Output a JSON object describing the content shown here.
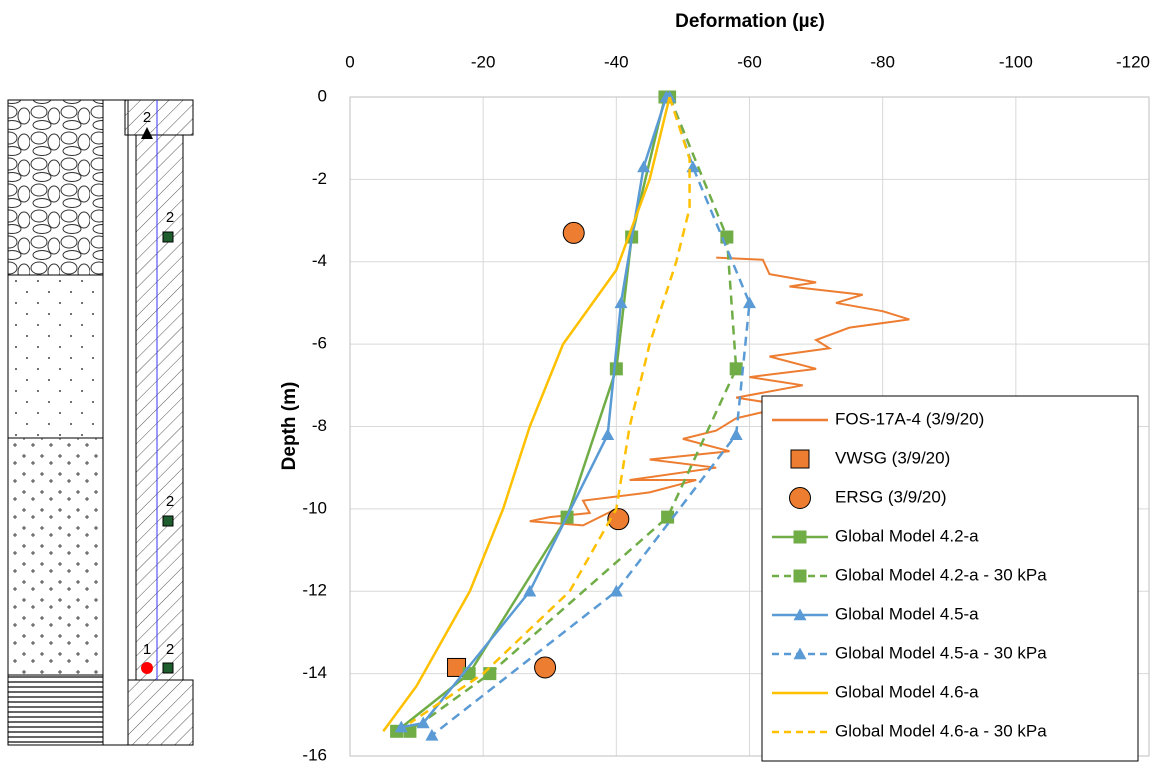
{
  "chart_data": {
    "type": "line",
    "title": "Deformation (µε)",
    "y_label": "Depth (m)",
    "xlim": [
      0,
      -120
    ],
    "xticks": [
      0,
      -20,
      -40,
      -60,
      -80,
      -100,
      -120
    ],
    "ylim": [
      0,
      -16
    ],
    "yticks": [
      0,
      -2,
      -4,
      -6,
      -8,
      -10,
      -12,
      -14,
      -16
    ],
    "grid": true,
    "legend": "lower-right",
    "series": [
      {
        "name": "FOS-17A-4 (3/9/20)",
        "color": "#ed7d31",
        "line": "solid",
        "marker": "none",
        "x": [
          -55,
          -62,
          -63,
          -70,
          -66,
          -77,
          -73,
          -80,
          -84,
          -75,
          -70,
          -72,
          -63,
          -70,
          -60,
          -68,
          -58,
          -66,
          -58,
          -55,
          -50,
          -57,
          -45,
          -55,
          -42,
          -52,
          -45,
          -35,
          -36,
          -30,
          -27,
          -35,
          -40
        ],
        "y": [
          -3.9,
          -3.95,
          -4.3,
          -4.5,
          -4.6,
          -4.8,
          -5.0,
          -5.2,
          -5.4,
          -5.6,
          -5.9,
          -6.1,
          -6.3,
          -6.6,
          -6.8,
          -7.0,
          -7.3,
          -7.5,
          -7.8,
          -8.1,
          -8.3,
          -8.6,
          -8.8,
          -9.0,
          -9.3,
          -9.3,
          -9.6,
          -9.8,
          -10.1,
          -10.2,
          -10.3,
          -10.4,
          -10.0
        ]
      },
      {
        "name": "VWSG (3/9/20)",
        "color": "#ed7d31",
        "line": "none",
        "marker": "square",
        "x": [
          -16
        ],
        "y": [
          -13.85
        ]
      },
      {
        "name": "ERSG (3/9/20)",
        "color": "#ed7d31",
        "line": "none",
        "marker": "circle",
        "x": [
          -33.6,
          -40.3,
          -29.3
        ],
        "y": [
          -3.3,
          -10.25,
          -13.85
        ]
      },
      {
        "name": "Global Model 4.2-a",
        "color": "#70ad47",
        "line": "solid",
        "marker": "square",
        "x": [
          -47.3,
          -42.3,
          -40,
          -32.6,
          -17.9,
          -7
        ],
        "y": [
          0,
          -3.4,
          -6.6,
          -10.2,
          -14,
          -15.4
        ]
      },
      {
        "name": "Global Model 4.2-a - 30 kPa",
        "color": "#70ad47",
        "line": "dashed",
        "marker": "square",
        "x": [
          -48,
          -56.6,
          -58,
          -47.7,
          -21,
          -9
        ],
        "y": [
          0,
          -3.4,
          -6.6,
          -10.2,
          -14,
          -15.4
        ]
      },
      {
        "name": "Global Model 4.5-a",
        "color": "#5b9bd5",
        "line": "solid",
        "marker": "triangle",
        "x": [
          -47.5,
          -44.1,
          -40.7,
          -38.7,
          -27,
          -11,
          -7.7
        ],
        "y": [
          0,
          -1.7,
          -5,
          -8.2,
          -12,
          -15.2,
          -15.3
        ]
      },
      {
        "name": "Global Model 4.5-a - 30 kPa",
        "color": "#5b9bd5",
        "line": "dashed",
        "marker": "triangle",
        "x": [
          -48,
          -51.5,
          -60,
          -58,
          -40,
          -12.3
        ],
        "y": [
          0,
          -1.7,
          -5,
          -8.2,
          -12,
          -15.5
        ]
      },
      {
        "name": "Global Model 4.6-a",
        "color": "#ffc000",
        "line": "solid",
        "marker": "none",
        "x": [
          -48,
          -45,
          -40,
          -32,
          -27,
          -23,
          -18,
          -10,
          -5
        ],
        "y": [
          0,
          -2,
          -4.2,
          -6,
          -8,
          -10,
          -12,
          -14.3,
          -15.4
        ]
      },
      {
        "name": "Global Model 4.6-a - 30 kPa",
        "color": "#ffc000",
        "line": "dashed",
        "marker": "none",
        "x": [
          -48,
          -51,
          -51,
          -49,
          -45,
          -42,
          -40,
          -33,
          -20,
          -9
        ],
        "y": [
          0,
          -1.5,
          -2.7,
          -4,
          -6,
          -8,
          -10,
          -12,
          -14,
          -15.2
        ]
      }
    ]
  },
  "borehole": {
    "labels": [
      "2",
      "2",
      "2",
      "1",
      "2"
    ]
  }
}
